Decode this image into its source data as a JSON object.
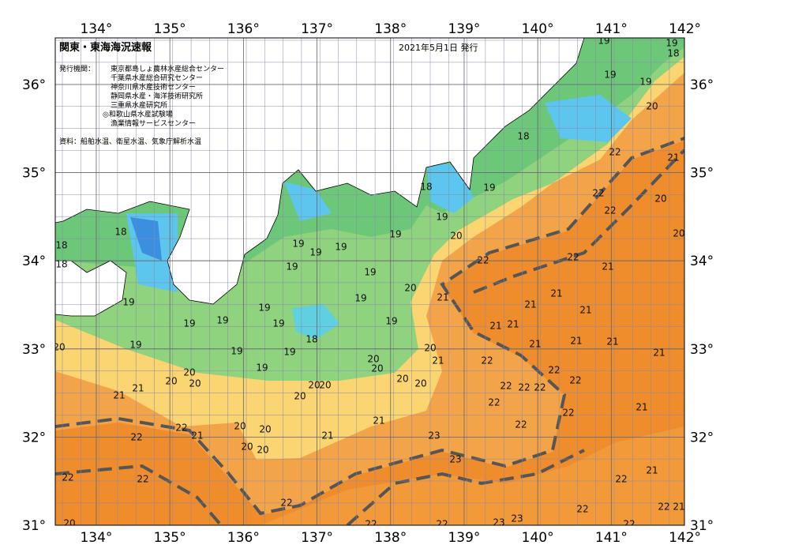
{
  "header": {
    "title": "関東・東海海況速報",
    "date": "2021年5月1日 発行",
    "issuer_label": "発行機関：",
    "issuers": [
      "東京都島しょ農林水産総合センター",
      "千葉県水産総合研究センター",
      "神奈川県水産技術センター",
      "静岡県水産・海洋技術研究所",
      "三重県水産研究所",
      "◎和歌山県水産試験場",
      "漁業情報サービスセンター"
    ],
    "source": "資料：船舶水温、衛星水温、気象庁解析水温"
  },
  "map": {
    "lon_ticks": [
      {
        "value": 134,
        "label": "134°"
      },
      {
        "value": 135,
        "label": "135°"
      },
      {
        "value": 136,
        "label": "136°"
      },
      {
        "value": 137,
        "label": "137°"
      },
      {
        "value": 138,
        "label": "138°"
      },
      {
        "value": 139,
        "label": "139°"
      },
      {
        "value": 140,
        "label": "140°"
      },
      {
        "value": 141,
        "label": "141°"
      },
      {
        "value": 142,
        "label": "142°"
      }
    ],
    "lat_ticks": [
      {
        "value": 31,
        "label": "31°"
      },
      {
        "value": 32,
        "label": "32°"
      },
      {
        "value": 33,
        "label": "33°"
      },
      {
        "value": 34,
        "label": "34°"
      },
      {
        "value": 35,
        "label": "35°"
      },
      {
        "value": 36,
        "label": "36°"
      }
    ],
    "contour_labels": [
      19,
      19,
      18,
      19,
      19,
      20,
      18,
      22,
      21,
      18,
      19,
      22,
      20,
      22,
      19,
      19,
      20,
      20,
      18,
      18,
      19,
      19,
      19,
      22,
      22,
      18,
      19,
      21,
      19,
      20,
      21,
      21,
      19,
      19,
      19,
      21,
      21,
      19,
      19,
      19,
      19,
      21,
      21,
      18,
      21,
      21,
      21,
      19,
      20,
      19,
      19,
      20,
      21,
      20,
      21,
      22,
      19,
      20,
      22,
      20,
      20,
      20,
      20,
      20,
      22,
      22,
      22,
      22,
      21,
      20,
      20,
      21,
      20,
      22,
      21,
      22,
      21,
      22,
      20,
      20,
      22,
      21,
      22,
      21,
      23,
      20,
      20,
      23,
      22,
      21,
      22,
      22,
      22,
      22,
      21,
      22,
      20,
      22,
      22,
      23,
      23,
      22
    ]
  }
}
